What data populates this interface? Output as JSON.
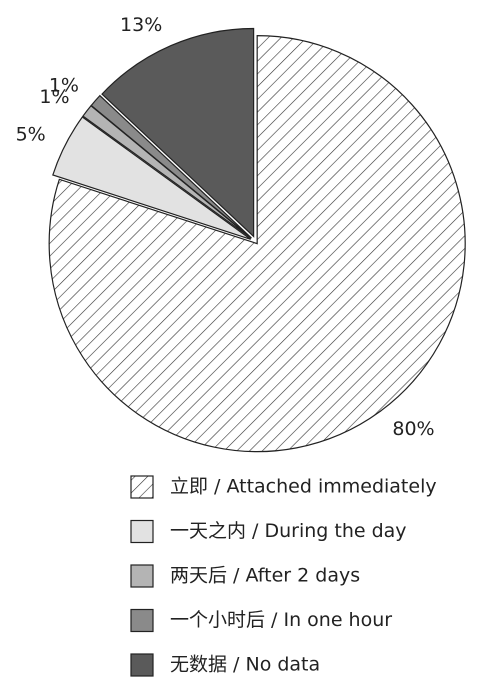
{
  "chart_data": {
    "type": "pie",
    "categories": [
      "立即 / Attached immediately",
      "一天之内 / During the day",
      "两天后 / After 2 days",
      "一个小时后 / In one hour",
      "无数据 / No data"
    ],
    "values": [
      80,
      5,
      1,
      1,
      13
    ],
    "value_labels": [
      "80%",
      "5%",
      "1%",
      "1%",
      "13%"
    ],
    "colors": [
      "hatch",
      "#e2e2e2",
      "#b4b4b4",
      "#8a8a8a",
      "#5a5a5a"
    ]
  }
}
